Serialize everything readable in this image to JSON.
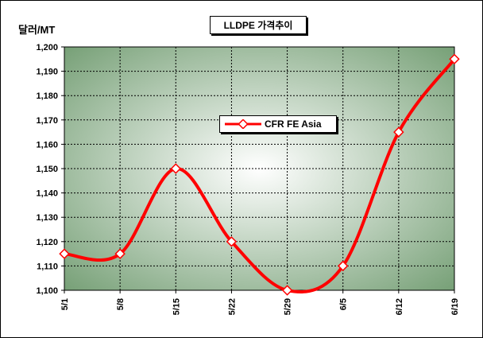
{
  "chart_data": {
    "type": "line",
    "title": "LLDPE 가격추이",
    "ylabel": "달러/MT",
    "xlabel": "",
    "categories": [
      "5/1",
      "5/8",
      "5/15",
      "5/22",
      "5/29",
      "6/5",
      "6/12",
      "6/19"
    ],
    "series": [
      {
        "name": "CFR FE Asia",
        "values": [
          1115,
          1115,
          1150,
          1120,
          1100,
          1110,
          1165,
          1195
        ],
        "color": "#ff0000"
      }
    ],
    "ylim": [
      1100,
      1200
    ],
    "yticks": [
      1100,
      1110,
      1120,
      1130,
      1140,
      1150,
      1160,
      1170,
      1180,
      1190,
      1200
    ],
    "ytick_labels": [
      "1,100",
      "1,110",
      "1,120",
      "1,130",
      "1,140",
      "1,150",
      "1,160",
      "1,170",
      "1,180",
      "1,190",
      "1,200"
    ],
    "grid": true,
    "legend_position": "center-right",
    "background_gradient": [
      "#ffffff",
      "#6e9a6e"
    ]
  }
}
